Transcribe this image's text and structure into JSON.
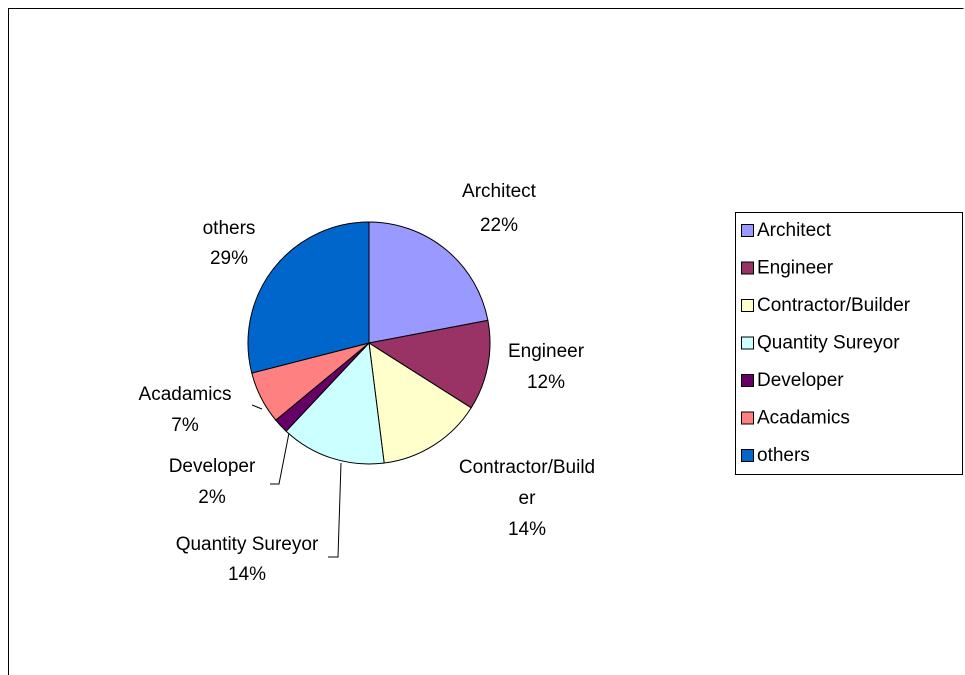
{
  "chart_data": {
    "type": "pie",
    "categories": [
      "Architect",
      "Engineer",
      "Contractor/Builder",
      "Quantity Sureyor",
      "Developer",
      "Acadamics",
      "others"
    ],
    "values": [
      22,
      12,
      14,
      14,
      2,
      7,
      29
    ],
    "value_labels": [
      "22%",
      "12%",
      "14%",
      "14%",
      "2%",
      "7%",
      "29%"
    ],
    "colors": [
      "#9999ff",
      "#993366",
      "#ffffcc",
      "#ccffff",
      "#660066",
      "#ff8080",
      "#0066cc"
    ],
    "legend": "right"
  }
}
